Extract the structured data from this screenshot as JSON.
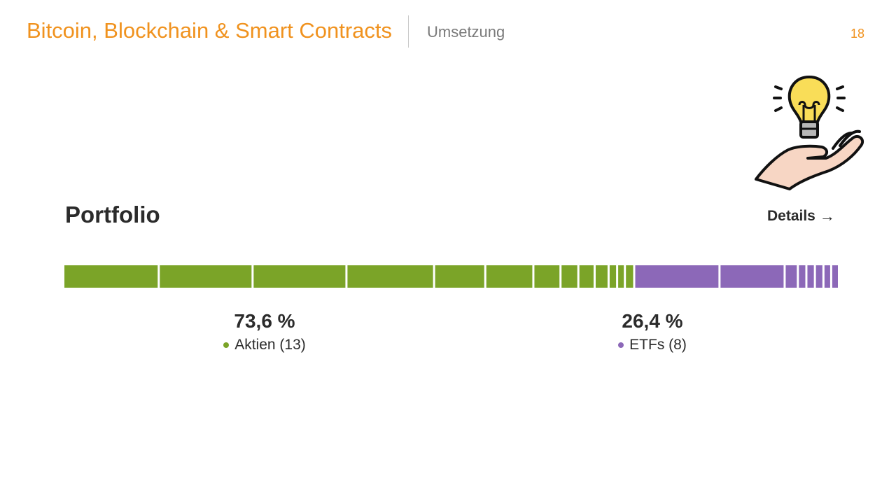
{
  "header": {
    "title": "Bitcoin, Blockchain & Smart Contracts",
    "section": "Umsetzung",
    "page_number": "18"
  },
  "portfolio": {
    "title": "Portfolio",
    "details_label": "Details",
    "details_arrow": "→"
  },
  "icon": "lightbulb-in-hand-icon",
  "colors": {
    "accent": "#f0921e",
    "aktien": "#7ba428",
    "etfs": "#8c68b8"
  },
  "chart_data": {
    "type": "bar",
    "orientation": "horizontal-stacked",
    "total": 100,
    "series": [
      {
        "name": "Aktien (13)",
        "total": 73.6,
        "color": "#7ba428",
        "segments": [
          12.3,
          12.1,
          12.1,
          11.3,
          6.6,
          6.2,
          3.5,
          2.3,
          2.1,
          1.8,
          1.1,
          1.0,
          1.2
        ]
      },
      {
        "name": "ETFs (8)",
        "total": 26.4,
        "color": "#8c68b8",
        "segments": [
          11.0,
          8.4,
          1.7,
          1.1,
          1.1,
          1.1,
          1.0,
          1.0
        ]
      }
    ]
  },
  "stats": [
    {
      "percent": "73,6 %",
      "label": "Aktien (13)"
    },
    {
      "percent": "26,4 %",
      "label": "ETFs (8)"
    }
  ]
}
